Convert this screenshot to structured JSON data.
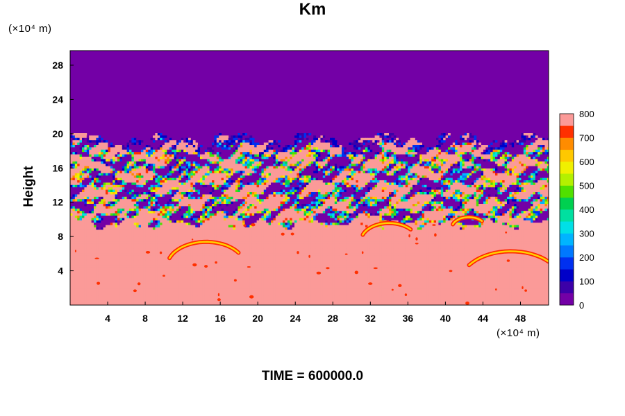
{
  "chart_data": {
    "type": "heatmap",
    "title": "Km",
    "xlabel": "",
    "ylabel": "Height",
    "x_unit": "(×10⁴ m)",
    "y_unit": "(×10⁴ m)",
    "xlim": [
      0,
      51
    ],
    "ylim": [
      0,
      29.7
    ],
    "x_ticks": [
      4,
      8,
      12,
      16,
      20,
      24,
      28,
      32,
      36,
      40,
      44,
      48
    ],
    "y_ticks": [
      4,
      8,
      12,
      16,
      20,
      24,
      28
    ],
    "colorbar": {
      "min": 0,
      "max": 800,
      "ticks": [
        0,
        100,
        200,
        300,
        400,
        500,
        600,
        700,
        800
      ],
      "levels": 16
    },
    "field_description_regions": [
      {
        "y_range": [
          0,
          10
        ],
        "value": 800
      },
      {
        "y_range": [
          10,
          19.5
        ],
        "value": "mixed 0-800"
      },
      {
        "y_range": [
          19.5,
          29.7
        ],
        "value": 0
      }
    ],
    "annotation": "TIME = 600000.0"
  },
  "colors": {
    "low": "#7300a6",
    "high": "#fb9a98"
  }
}
